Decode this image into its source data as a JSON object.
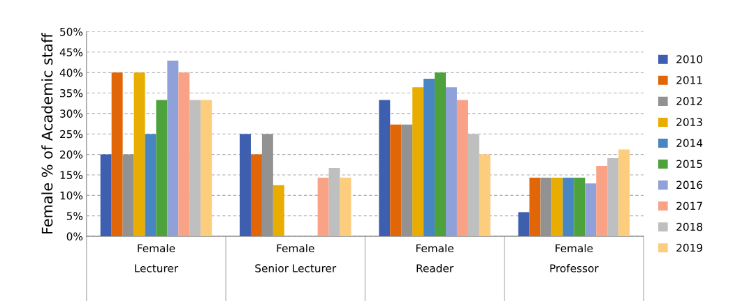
{
  "chart_data": {
    "type": "bar",
    "ylabel": "Female % of Academic staff",
    "categories": [
      "Female\nLecturer",
      "Female\nSenior Lecturer",
      "Female\nReader",
      "Female\nProfessor"
    ],
    "series": [
      {
        "name": "2010",
        "color": "#3e5fb0",
        "values": [
          20,
          25,
          33.3,
          5.9
        ]
      },
      {
        "name": "2011",
        "color": "#e06608",
        "values": [
          40,
          20,
          27.3,
          14.3
        ]
      },
      {
        "name": "2012",
        "color": "#929292",
        "values": [
          20,
          25,
          27.3,
          14.3
        ]
      },
      {
        "name": "2013",
        "color": "#e8ad00",
        "values": [
          40,
          12.5,
          36.4,
          14.3
        ]
      },
      {
        "name": "2014",
        "color": "#4786c2",
        "values": [
          25,
          null,
          38.5,
          14.3
        ]
      },
      {
        "name": "2015",
        "color": "#4ea23c",
        "values": [
          33.3,
          null,
          40,
          14.3
        ]
      },
      {
        "name": "2016",
        "color": "#90a0d8",
        "values": [
          42.9,
          null,
          36.4,
          12.9
        ]
      },
      {
        "name": "2017",
        "color": "#f9a286",
        "values": [
          40,
          14.3,
          33.3,
          17.2
        ]
      },
      {
        "name": "2018",
        "color": "#bfbfbf",
        "values": [
          33.3,
          16.7,
          25,
          19.1
        ]
      },
      {
        "name": "2019",
        "color": "#fdcd7e",
        "values": [
          33.3,
          14.3,
          20,
          21.2
        ]
      }
    ],
    "ylim": [
      0,
      50
    ],
    "yticks": [
      {
        "value": 0,
        "label": "0%"
      },
      {
        "value": 5,
        "label": "5%"
      },
      {
        "value": 10,
        "label": "10%"
      },
      {
        "value": 15,
        "label": "15%"
      },
      {
        "value": 20,
        "label": "20%"
      },
      {
        "value": 25,
        "label": "25%"
      },
      {
        "value": 30,
        "label": "30%"
      },
      {
        "value": 35,
        "label": "35%"
      },
      {
        "value": 40,
        "label": "40%"
      },
      {
        "value": 45,
        "label": "45%"
      },
      {
        "value": 50,
        "label": "50%"
      }
    ],
    "grid": "y",
    "legend": "right"
  }
}
